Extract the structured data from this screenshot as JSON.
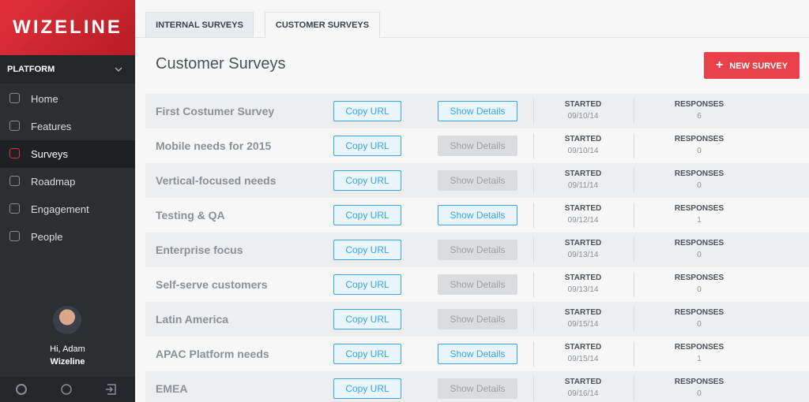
{
  "sidebar": {
    "logo": "WIZELINE",
    "section": "PLATFORM",
    "nav": [
      {
        "label": "Home",
        "active": false
      },
      {
        "label": "Features",
        "active": false
      },
      {
        "label": "Surveys",
        "active": true
      },
      {
        "label": "Roadmap",
        "active": false
      },
      {
        "label": "Engagement",
        "active": false
      },
      {
        "label": "People",
        "active": false
      }
    ],
    "user": {
      "greeting": "Hi, Adam",
      "company": "Wizeline"
    }
  },
  "tabs": [
    {
      "label": "INTERNAL SURVEYS",
      "active": false
    },
    {
      "label": "CUSTOMER SURVEYS",
      "active": true
    }
  ],
  "page_title": "Customer Surveys",
  "new_button": "NEW SURVEY",
  "copy_label": "Copy URL",
  "details_label": "Show Details",
  "columns": {
    "started": "STARTED",
    "responses": "RESPONSES"
  },
  "rows": [
    {
      "name": "First Costumer Survey",
      "started": "09/10/14",
      "responses": 6,
      "details_enabled": true
    },
    {
      "name": "Mobile needs for 2015",
      "started": "09/10/14",
      "responses": 0,
      "details_enabled": false
    },
    {
      "name": "Vertical-focused needs",
      "started": "09/11/14",
      "responses": 0,
      "details_enabled": false
    },
    {
      "name": "Testing & QA",
      "started": "09/12/14",
      "responses": 1,
      "details_enabled": true
    },
    {
      "name": "Enterprise focus",
      "started": "09/13/14",
      "responses": 0,
      "details_enabled": false
    },
    {
      "name": "Self-serve customers",
      "started": "09/13/14",
      "responses": 0,
      "details_enabled": false
    },
    {
      "name": "Latin America",
      "started": "09/15/14",
      "responses": 0,
      "details_enabled": false
    },
    {
      "name": "APAC Platform needs",
      "started": "09/15/14",
      "responses": 1,
      "details_enabled": true
    },
    {
      "name": "EMEA",
      "started": "09/16/14",
      "responses": 0,
      "details_enabled": false
    }
  ]
}
